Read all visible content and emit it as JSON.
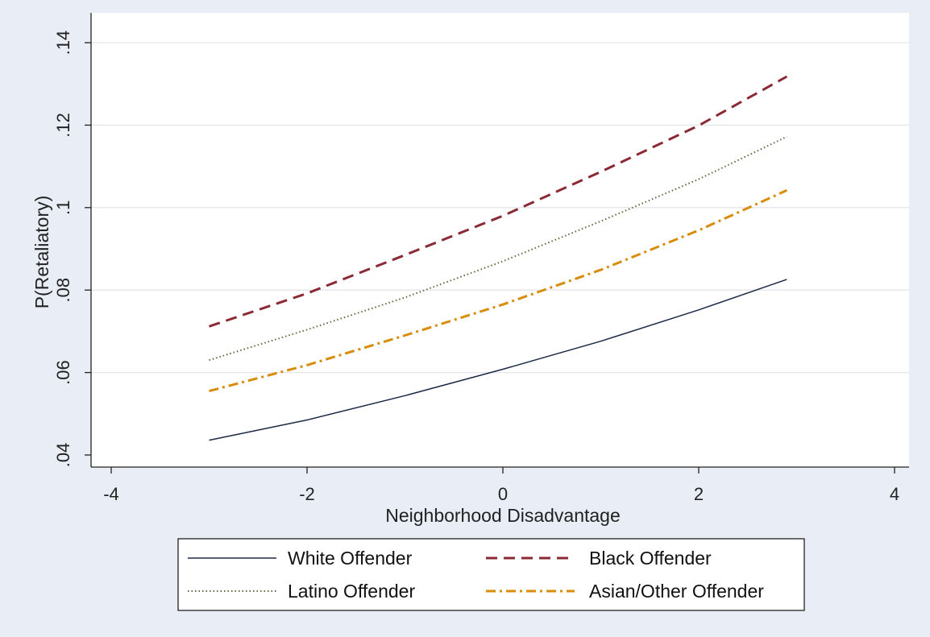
{
  "chart_data": {
    "type": "line",
    "xlabel": "Neighborhood Disadvantage",
    "ylabel": "P(Retaliatory)",
    "xlim": [
      -4,
      4
    ],
    "ylim": [
      0.04,
      0.14
    ],
    "x_ticks": [
      -4,
      -2,
      0,
      2,
      4
    ],
    "x_tick_labels": [
      "-4",
      "-2",
      "0",
      "2",
      "4"
    ],
    "y_ticks": [
      0.04,
      0.06,
      0.08,
      0.1,
      0.12,
      0.14
    ],
    "y_tick_labels": [
      ".04",
      ".06",
      ".08",
      ".1",
      ".12",
      ".14"
    ],
    "grid": "horizontal",
    "legend_position": "bottom",
    "background_color": "#e9edf6",
    "plot_background_color": "#ffffff",
    "x": [
      -3,
      -2,
      -1,
      0,
      1,
      2,
      2.9
    ],
    "series": [
      {
        "name": "White Offender",
        "color": "#1c2a48",
        "dash": "solid",
        "values": [
          0.0436,
          0.0485,
          0.0544,
          0.0608,
          0.0676,
          0.0752,
          0.0826
        ]
      },
      {
        "name": "Black Offender",
        "color": "#8b2a35",
        "dash": "dash",
        "values": [
          0.0712,
          0.0792,
          0.0885,
          0.098,
          0.1087,
          0.1199,
          0.1318
        ]
      },
      {
        "name": "Latino Offender",
        "color": "#5e6a3a",
        "dash": "dot",
        "values": [
          0.063,
          0.0704,
          0.0782,
          0.087,
          0.0967,
          0.1069,
          0.1172
        ]
      },
      {
        "name": "Asian/Other Offender",
        "color": "#d98b0a",
        "dash": "dashdot",
        "values": [
          0.0555,
          0.0618,
          0.069,
          0.0765,
          0.0849,
          0.0945,
          0.1042
        ]
      }
    ]
  }
}
